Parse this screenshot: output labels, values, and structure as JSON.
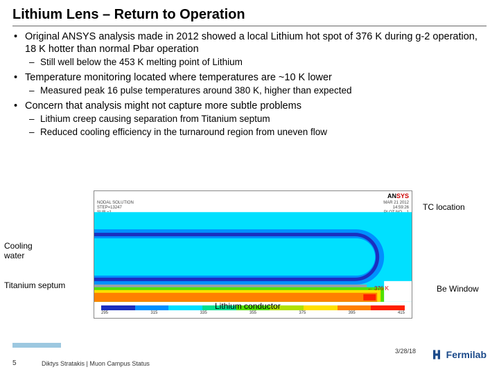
{
  "title": "Lithium Lens – Return to Operation",
  "bullets": [
    {
      "text": "Original ANSYS analysis made in 2012 showed a local Lithium hot spot of 376 K during g-2 operation, 18 K hotter than normal Pbar operation",
      "sub": [
        "Still well below the 453 K melting point of Lithium"
      ]
    },
    {
      "text": "Temperature monitoring located where temperatures are ~10 K lower",
      "sub": [
        "Measured peak 16 pulse temperatures around 380 K, higher than expected"
      ]
    },
    {
      "text": "Concern that analysis might not capture more subtle problems",
      "sub": [
        "Lithium creep causing separation from Titanium septum",
        "Reduced cooling efficiency in the turnaround region from uneven flow"
      ]
    }
  ],
  "annotations": {
    "tc": "TC location",
    "cooling": "Cooling water",
    "ti": "Titanium septum",
    "be": "Be Window",
    "li": "Lithium conductor",
    "ktag": "376 K"
  },
  "ansys": {
    "logo_an": "AN",
    "logo_sys": "SYS",
    "meta_left": "NODAL SOLUTION\nSTEP=13247\nSUB =1\nTIME=40.4139\n(AVG)\nRSYS=0\nSMN =295.343\nSMX =380.058",
    "meta_right": "MAR 21 2012\n14:59:26\nPLOT NO.   1"
  },
  "colorbar": {
    "ticks": [
      "295",
      "315",
      "335",
      "355",
      "375",
      "395",
      "415"
    ],
    "colors": [
      "#1b2fbf",
      "#0090ff",
      "#00e0ff",
      "#00e090",
      "#50e000",
      "#b0e000",
      "#ffe000",
      "#ff8000",
      "#ff2000"
    ]
  },
  "contour": {
    "bg": "#00e0ff",
    "channel_fill": "#0090ff",
    "channel_inner": "#1b2fbf",
    "septum": "#9aa0a6",
    "core_outer": "#50e000",
    "core_mid": "#ffe000",
    "core_inner": "#ff8000",
    "core_hot": "#ff2000",
    "window": "#ffffff"
  },
  "footer": {
    "page": "5",
    "credit": "Diktys Stratakis | Muon Campus Status",
    "date": "3/28/18",
    "lab": "Fermilab",
    "lab_color": "#1b4a8a"
  }
}
